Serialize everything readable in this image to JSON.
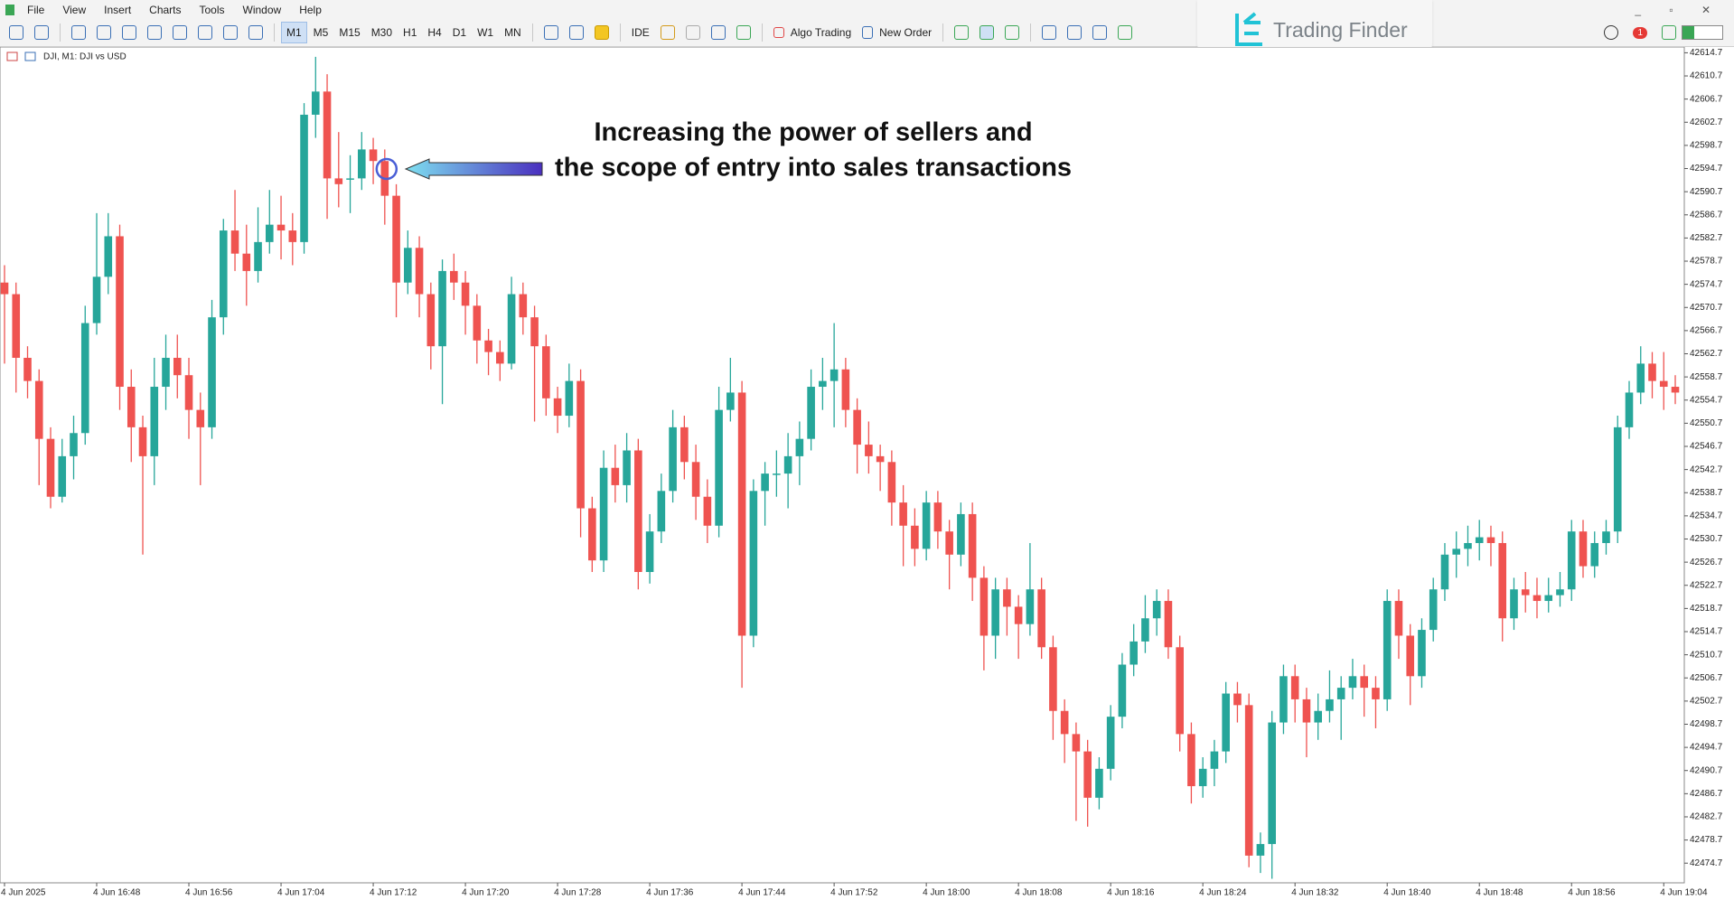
{
  "ui": {
    "menu": [
      "File",
      "View",
      "Insert",
      "Charts",
      "Tools",
      "Window",
      "Help"
    ],
    "timeframes": [
      "M1",
      "M5",
      "M15",
      "M30",
      "H1",
      "H4",
      "D1",
      "W1",
      "MN"
    ],
    "ide": "IDE",
    "algo": "Algo Trading",
    "order": "New Order",
    "brand": "Trading Finder",
    "badge": "1"
  },
  "chart_data": {
    "type": "candlestick",
    "title": "DJI, M1:  DJI vs USD",
    "annotation": [
      "Increasing the power of sellers and",
      "the scope of entry into sales transactions"
    ],
    "up_color": "#26a69a",
    "down_color": "#ef5350",
    "grid": false,
    "ylim": [
      42471.3,
      42615.7
    ],
    "yticks": [
      42474.7,
      42478.7,
      42482.7,
      42486.7,
      42490.7,
      42494.7,
      42498.7,
      42502.7,
      42506.7,
      42510.7,
      42514.7,
      42518.7,
      42522.7,
      42526.7,
      42530.7,
      42534.7,
      42538.7,
      42542.7,
      42546.7,
      42550.7,
      42554.7,
      42558.7,
      42562.7,
      42566.7,
      42570.7,
      42574.7,
      42578.7,
      42582.7,
      42586.7,
      42590.7,
      42594.7,
      42598.7,
      42602.7,
      42606.7,
      42610.7,
      42614.7
    ],
    "categories": [
      "4 Jun 2025",
      null,
      null,
      null,
      null,
      null,
      null,
      null,
      "4 Jun 16:48",
      null,
      null,
      null,
      null,
      null,
      null,
      null,
      "4 Jun 16:56",
      null,
      null,
      null,
      null,
      null,
      null,
      null,
      "4 Jun 17:04",
      null,
      null,
      null,
      null,
      null,
      null,
      null,
      "4 Jun 17:12",
      null,
      null,
      null,
      null,
      null,
      null,
      null,
      "4 Jun 17:20",
      null,
      null,
      null,
      null,
      null,
      null,
      null,
      "4 Jun 17:28",
      null,
      null,
      null,
      null,
      null,
      null,
      null,
      "4 Jun 17:36",
      null,
      null,
      null,
      null,
      null,
      null,
      null,
      "4 Jun 17:44",
      null,
      null,
      null,
      null,
      null,
      null,
      null,
      "4 Jun 17:52",
      null,
      null,
      null,
      null,
      null,
      null,
      null,
      "4 Jun 18:00",
      null,
      null,
      null,
      null,
      null,
      null,
      null,
      "4 Jun 18:08",
      null,
      null,
      null,
      null,
      null,
      null,
      null,
      "4 Jun 18:16",
      null,
      null,
      null,
      null,
      null,
      null,
      null,
      "4 Jun 18:24",
      null,
      null,
      null,
      null,
      null,
      null,
      null,
      "4 Jun 18:32",
      null,
      null,
      null,
      null,
      null,
      null,
      null,
      "4 Jun 18:40",
      null,
      null,
      null,
      null,
      null,
      null,
      null,
      "4 Jun 18:48",
      null,
      null,
      null,
      null,
      null,
      null,
      null,
      "4 Jun 18:56",
      null,
      null,
      null,
      null,
      null,
      null,
      null,
      "4 Jun 19:04",
      null
    ],
    "ohlc": [
      [
        42575,
        42578,
        42561,
        42573
      ],
      [
        42573,
        42575,
        42556,
        42562
      ],
      [
        42562,
        42564,
        42555,
        42558
      ],
      [
        42558,
        42560,
        42540,
        42548
      ],
      [
        42548,
        42550,
        42536,
        42538
      ],
      [
        42538,
        42548,
        42537,
        42545
      ],
      [
        42545,
        42552,
        42541,
        42549
      ],
      [
        42549,
        42571,
        42547,
        42568
      ],
      [
        42568,
        42587,
        42566,
        42576
      ],
      [
        42576,
        42587,
        42573,
        42583
      ],
      [
        42583,
        42585,
        42553,
        42557
      ],
      [
        42557,
        42560,
        42544,
        42550
      ],
      [
        42550,
        42552,
        42528,
        42545
      ],
      [
        42545,
        42562,
        42540,
        42557
      ],
      [
        42557,
        42566,
        42553,
        42562
      ],
      [
        42562,
        42566,
        42555,
        42559
      ],
      [
        42559,
        42562,
        42548,
        42553
      ],
      [
        42553,
        42556,
        42540,
        42550
      ],
      [
        42550,
        42572,
        42548,
        42569
      ],
      [
        42569,
        42586,
        42566,
        42584
      ],
      [
        42584,
        42591,
        42577,
        42580
      ],
      [
        42580,
        42585,
        42571,
        42577
      ],
      [
        42577,
        42588,
        42575,
        42582
      ],
      [
        42582,
        42591,
        42580,
        42585
      ],
      [
        42585,
        42590,
        42579,
        42584
      ],
      [
        42584,
        42587,
        42578,
        42582
      ],
      [
        42582,
        42606,
        42580,
        42604
      ],
      [
        42604,
        42614,
        42600,
        42608
      ],
      [
        42608,
        42611,
        42586,
        42593
      ],
      [
        42593,
        42601,
        42588,
        42592
      ],
      [
        42593,
        42597,
        42587,
        42593
      ],
      [
        42593,
        42601,
        42591,
        42598
      ],
      [
        42598,
        42600,
        42592,
        42596
      ],
      [
        42596,
        42598,
        42585,
        42590
      ],
      [
        42590,
        42592,
        42569,
        42575
      ],
      [
        42575,
        42584,
        42573,
        42581
      ],
      [
        42581,
        42583,
        42569,
        42573
      ],
      [
        42573,
        42575,
        42560,
        42564
      ],
      [
        42564,
        42579,
        42554,
        42577
      ],
      [
        42577,
        42580,
        42572,
        42575
      ],
      [
        42575,
        42577,
        42566,
        42571
      ],
      [
        42571,
        42573,
        42561,
        42565
      ],
      [
        42565,
        42567,
        42559,
        42563
      ],
      [
        42563,
        42565,
        42558,
        42561
      ],
      [
        42561,
        42576,
        42560,
        42573
      ],
      [
        42573,
        42575,
        42566,
        42569
      ],
      [
        42569,
        42571,
        42551,
        42564
      ],
      [
        42564,
        42566,
        42552,
        42555
      ],
      [
        42555,
        42557,
        42549,
        42552
      ],
      [
        42552,
        42561,
        42550,
        42558
      ],
      [
        42558,
        42560,
        42531,
        42536
      ],
      [
        42536,
        42538,
        42525,
        42527
      ],
      [
        42527,
        42546,
        42525,
        42543
      ],
      [
        42543,
        42547,
        42537,
        42540
      ],
      [
        42540,
        42549,
        42537,
        42546
      ],
      [
        42546,
        42548,
        42522,
        42525
      ],
      [
        42525,
        42535,
        42523,
        42532
      ],
      [
        42532,
        42542,
        42530,
        42539
      ],
      [
        42539,
        42553,
        42537,
        42550
      ],
      [
        42550,
        42552,
        42541,
        42544
      ],
      [
        42544,
        42547,
        42534,
        42538
      ],
      [
        42538,
        42541,
        42530,
        42533
      ],
      [
        42533,
        42557,
        42531,
        42553
      ],
      [
        42553,
        42562,
        42551,
        42556
      ],
      [
        42556,
        42558,
        42505,
        42514
      ],
      [
        42514,
        42541,
        42512,
        42539
      ],
      [
        42539,
        42544,
        42533,
        42542
      ],
      [
        42542,
        42546,
        42538,
        42542
      ],
      [
        42542,
        42549,
        42536,
        42545
      ],
      [
        42545,
        42551,
        42540,
        42548
      ],
      [
        42548,
        42560,
        42546,
        42557
      ],
      [
        42557,
        42562,
        42553,
        42558
      ],
      [
        42558,
        42568,
        42550,
        42560
      ],
      [
        42560,
        42562,
        42550,
        42553
      ],
      [
        42553,
        42555,
        42542,
        42547
      ],
      [
        42547,
        42551,
        42542,
        42545
      ],
      [
        42545,
        42547,
        42539,
        42544
      ],
      [
        42544,
        42546,
        42533,
        42537
      ],
      [
        42537,
        42540,
        42526,
        42533
      ],
      [
        42533,
        42536,
        42526,
        42529
      ],
      [
        42529,
        42539,
        42527,
        42537
      ],
      [
        42537,
        42539,
        42529,
        42532
      ],
      [
        42532,
        42534,
        42522,
        42528
      ],
      [
        42528,
        42537,
        42526,
        42535
      ],
      [
        42535,
        42537,
        42520,
        42524
      ],
      [
        42524,
        42526,
        42508,
        42514
      ],
      [
        42514,
        42524,
        42510,
        42522
      ],
      [
        42522,
        42524,
        42514,
        42519
      ],
      [
        42519,
        42521,
        42510,
        42516
      ],
      [
        42516,
        42530,
        42514,
        42522
      ],
      [
        42522,
        42524,
        42510,
        42512
      ],
      [
        42512,
        42514,
        42496,
        42501
      ],
      [
        42501,
        42503,
        42492,
        42497
      ],
      [
        42497,
        42499,
        42482,
        42494
      ],
      [
        42494,
        42496,
        42481,
        42486
      ],
      [
        42486,
        42493,
        42484,
        42491
      ],
      [
        42491,
        42502,
        42489,
        42500
      ],
      [
        42500,
        42511,
        42498,
        42509
      ],
      [
        42509,
        42516,
        42507,
        42513
      ],
      [
        42513,
        42521,
        42511,
        42517
      ],
      [
        42517,
        42522,
        42514,
        42520
      ],
      [
        42520,
        42522,
        42510,
        42512
      ],
      [
        42512,
        42514,
        42494,
        42497
      ],
      [
        42497,
        42499,
        42485,
        42488
      ],
      [
        42488,
        42493,
        42486,
        42491
      ],
      [
        42491,
        42496,
        42488,
        42494
      ],
      [
        42494,
        42506,
        42492,
        42504
      ],
      [
        42504,
        42506,
        42499,
        42502
      ],
      [
        42502,
        42504,
        42474,
        42476
      ],
      [
        42476,
        42480,
        42473,
        42478
      ],
      [
        42478,
        42501,
        42472,
        42499
      ],
      [
        42499,
        42509,
        42497,
        42507
      ],
      [
        42507,
        42509,
        42499,
        42503
      ],
      [
        42503,
        42505,
        42493,
        42499
      ],
      [
        42499,
        42504,
        42496,
        42501
      ],
      [
        42501,
        42508,
        42499,
        42503
      ],
      [
        42503,
        42507,
        42496,
        42505
      ],
      [
        42505,
        42510,
        42503,
        42507
      ],
      [
        42507,
        42509,
        42500,
        42505
      ],
      [
        42505,
        42507,
        42498,
        42503
      ],
      [
        42503,
        42522,
        42501,
        42520
      ],
      [
        42520,
        42522,
        42510,
        42514
      ],
      [
        42514,
        42516,
        42502,
        42507
      ],
      [
        42507,
        42517,
        42505,
        42515
      ],
      [
        42515,
        42524,
        42513,
        42522
      ],
      [
        42522,
        42530,
        42520,
        42528
      ],
      [
        42528,
        42532,
        42524,
        42529
      ],
      [
        42529,
        42533,
        42526,
        42530
      ],
      [
        42530,
        42534,
        42527,
        42531
      ],
      [
        42531,
        42533,
        42526,
        42530
      ],
      [
        42530,
        42532,
        42513,
        42517
      ],
      [
        42517,
        42524,
        42515,
        42522
      ],
      [
        42522,
        42525,
        42518,
        42521
      ],
      [
        42521,
        42524,
        42517,
        42520
      ],
      [
        42520,
        42524,
        42518,
        42521
      ],
      [
        42521,
        42525,
        42519,
        42522
      ],
      [
        42522,
        42534,
        42520,
        42532
      ],
      [
        42532,
        42534,
        42524,
        42526
      ],
      [
        42526,
        42532,
        42524,
        42530
      ],
      [
        42530,
        42534,
        42528,
        42532
      ],
      [
        42532,
        42552,
        42530,
        42550
      ],
      [
        42550,
        42558,
        42548,
        42556
      ],
      [
        42556,
        42564,
        42554,
        42561
      ],
      [
        42561,
        42563,
        42555,
        42558
      ],
      [
        42558,
        42563,
        42553,
        42557
      ],
      [
        42557,
        42559,
        42554,
        42556
      ]
    ]
  }
}
